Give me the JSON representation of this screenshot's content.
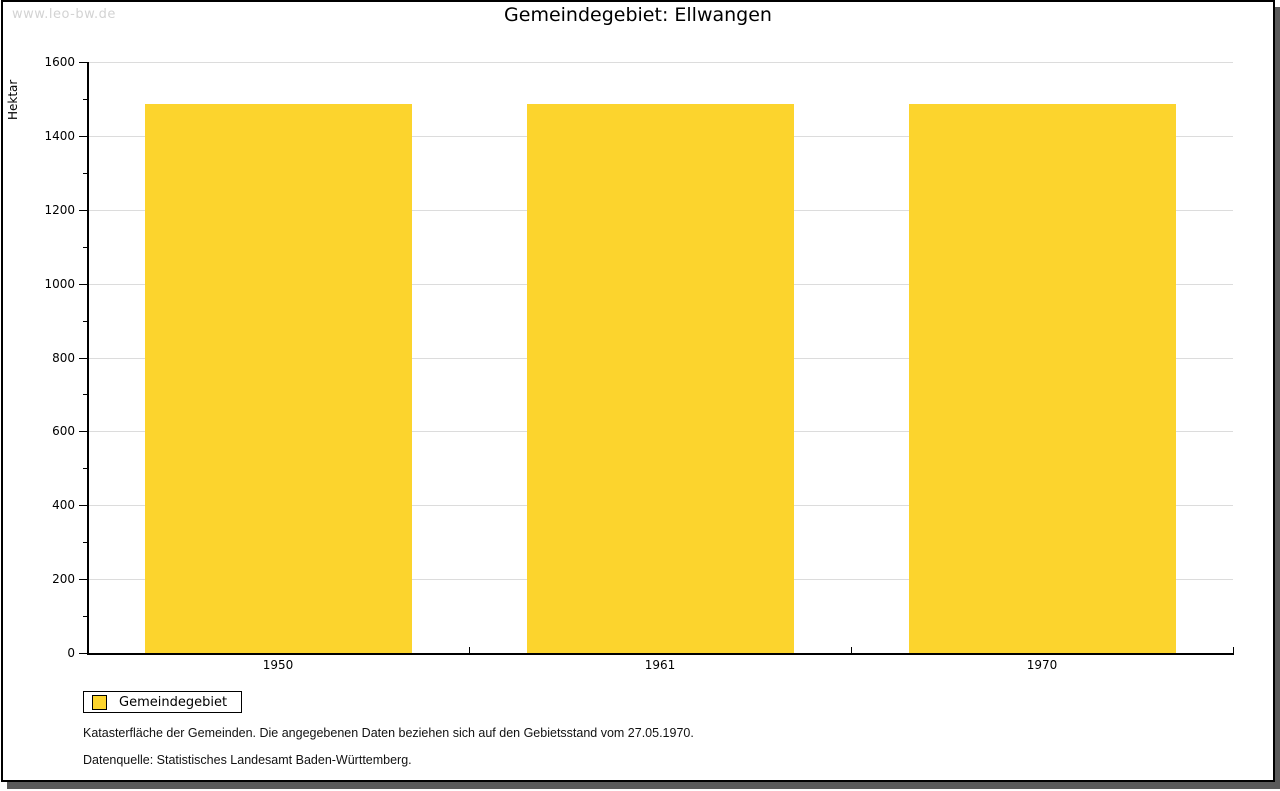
{
  "watermark": "www.leo-bw.de",
  "title": "Gemeindegebiet: Ellwangen",
  "chart_data": {
    "type": "bar",
    "categories": [
      "1950",
      "1961",
      "1970"
    ],
    "series": [
      {
        "name": "Gemeindegebiet",
        "values": [
          1485,
          1485,
          1485
        ]
      }
    ],
    "title": "Gemeindegebiet: Ellwangen",
    "xlabel": "",
    "ylabel": "Hektar",
    "ylim": [
      0,
      1600
    ],
    "ytick_major_step": 200,
    "ytick_minor_step": 100,
    "grid": true,
    "bar_color": "#FCD42D",
    "legend_position": "bottom-left"
  },
  "legend": {
    "items": [
      {
        "label": "Gemeindegebiet",
        "color": "#FCD42D"
      }
    ]
  },
  "footnotes": [
    "Katasterfläche der Gemeinden. Die angegebenen Daten beziehen sich auf den Gebietsstand vom 27.05.1970.",
    "Datenquelle: Statistisches Landesamt Baden-Württemberg."
  ]
}
